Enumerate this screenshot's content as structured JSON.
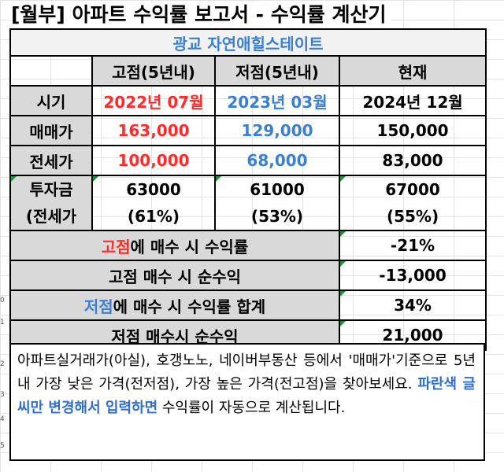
{
  "title": "[월부] 아파트 수익률 보고서 - 수익률 계산기",
  "complex_name": "광교 자연애힐스테이트",
  "columns": {
    "high": "고점(5년내)",
    "low": "저점(5년내)",
    "current": "현재"
  },
  "rows": {
    "period": {
      "label": "시기",
      "high": "2022년 07월",
      "low": "2023년 03월",
      "current": "2024년 12월"
    },
    "sale_price": {
      "label": "매매가",
      "high": "163,000",
      "low": "129,000",
      "current": "150,000"
    },
    "jeonse_price": {
      "label": "전세가",
      "high": "100,000",
      "low": "68,000",
      "current": "83,000"
    },
    "investment": {
      "label_line1": "투자금",
      "label_line2": "(전세가",
      "high": "63000",
      "high_pct": "(61%)",
      "low": "61000",
      "low_pct": "(53%)",
      "current": "67000",
      "current_pct": "(55%)"
    }
  },
  "summary": {
    "high_yield": {
      "label_colored": "고점",
      "label_rest": "에 매수 시 수익률",
      "value": "-21%"
    },
    "high_profit": {
      "label": "고점 매수 시 순수익",
      "value": "-13,000"
    },
    "low_yield": {
      "label_colored": "저점",
      "label_rest": "에 매수 시 수익률 합계",
      "value": "34%"
    },
    "low_profit": {
      "label": "저점 매수시 순수익",
      "value": "21,000"
    }
  },
  "note": {
    "text1": "아파트실거래가(아실), 호갱노노, 네이버부동산 등에서 '매매가'기준으로 5년 내 가장 낮은 가격(전저점), 가장 높은 가격(전고점)을 찾아보세요. ",
    "highlight": "파란색 글씨만 변경해서 입력하면",
    "text2": " 수익률이 자동으로 계산됩니다."
  },
  "colors": {
    "red": "#ff2b2b",
    "blue": "#3a7fd0",
    "header_bg": "#d9d9d9",
    "triangle": "#1e8f3e"
  },
  "row_headers": [
    "0",
    "1",
    "2",
    "3",
    "4",
    "5"
  ]
}
